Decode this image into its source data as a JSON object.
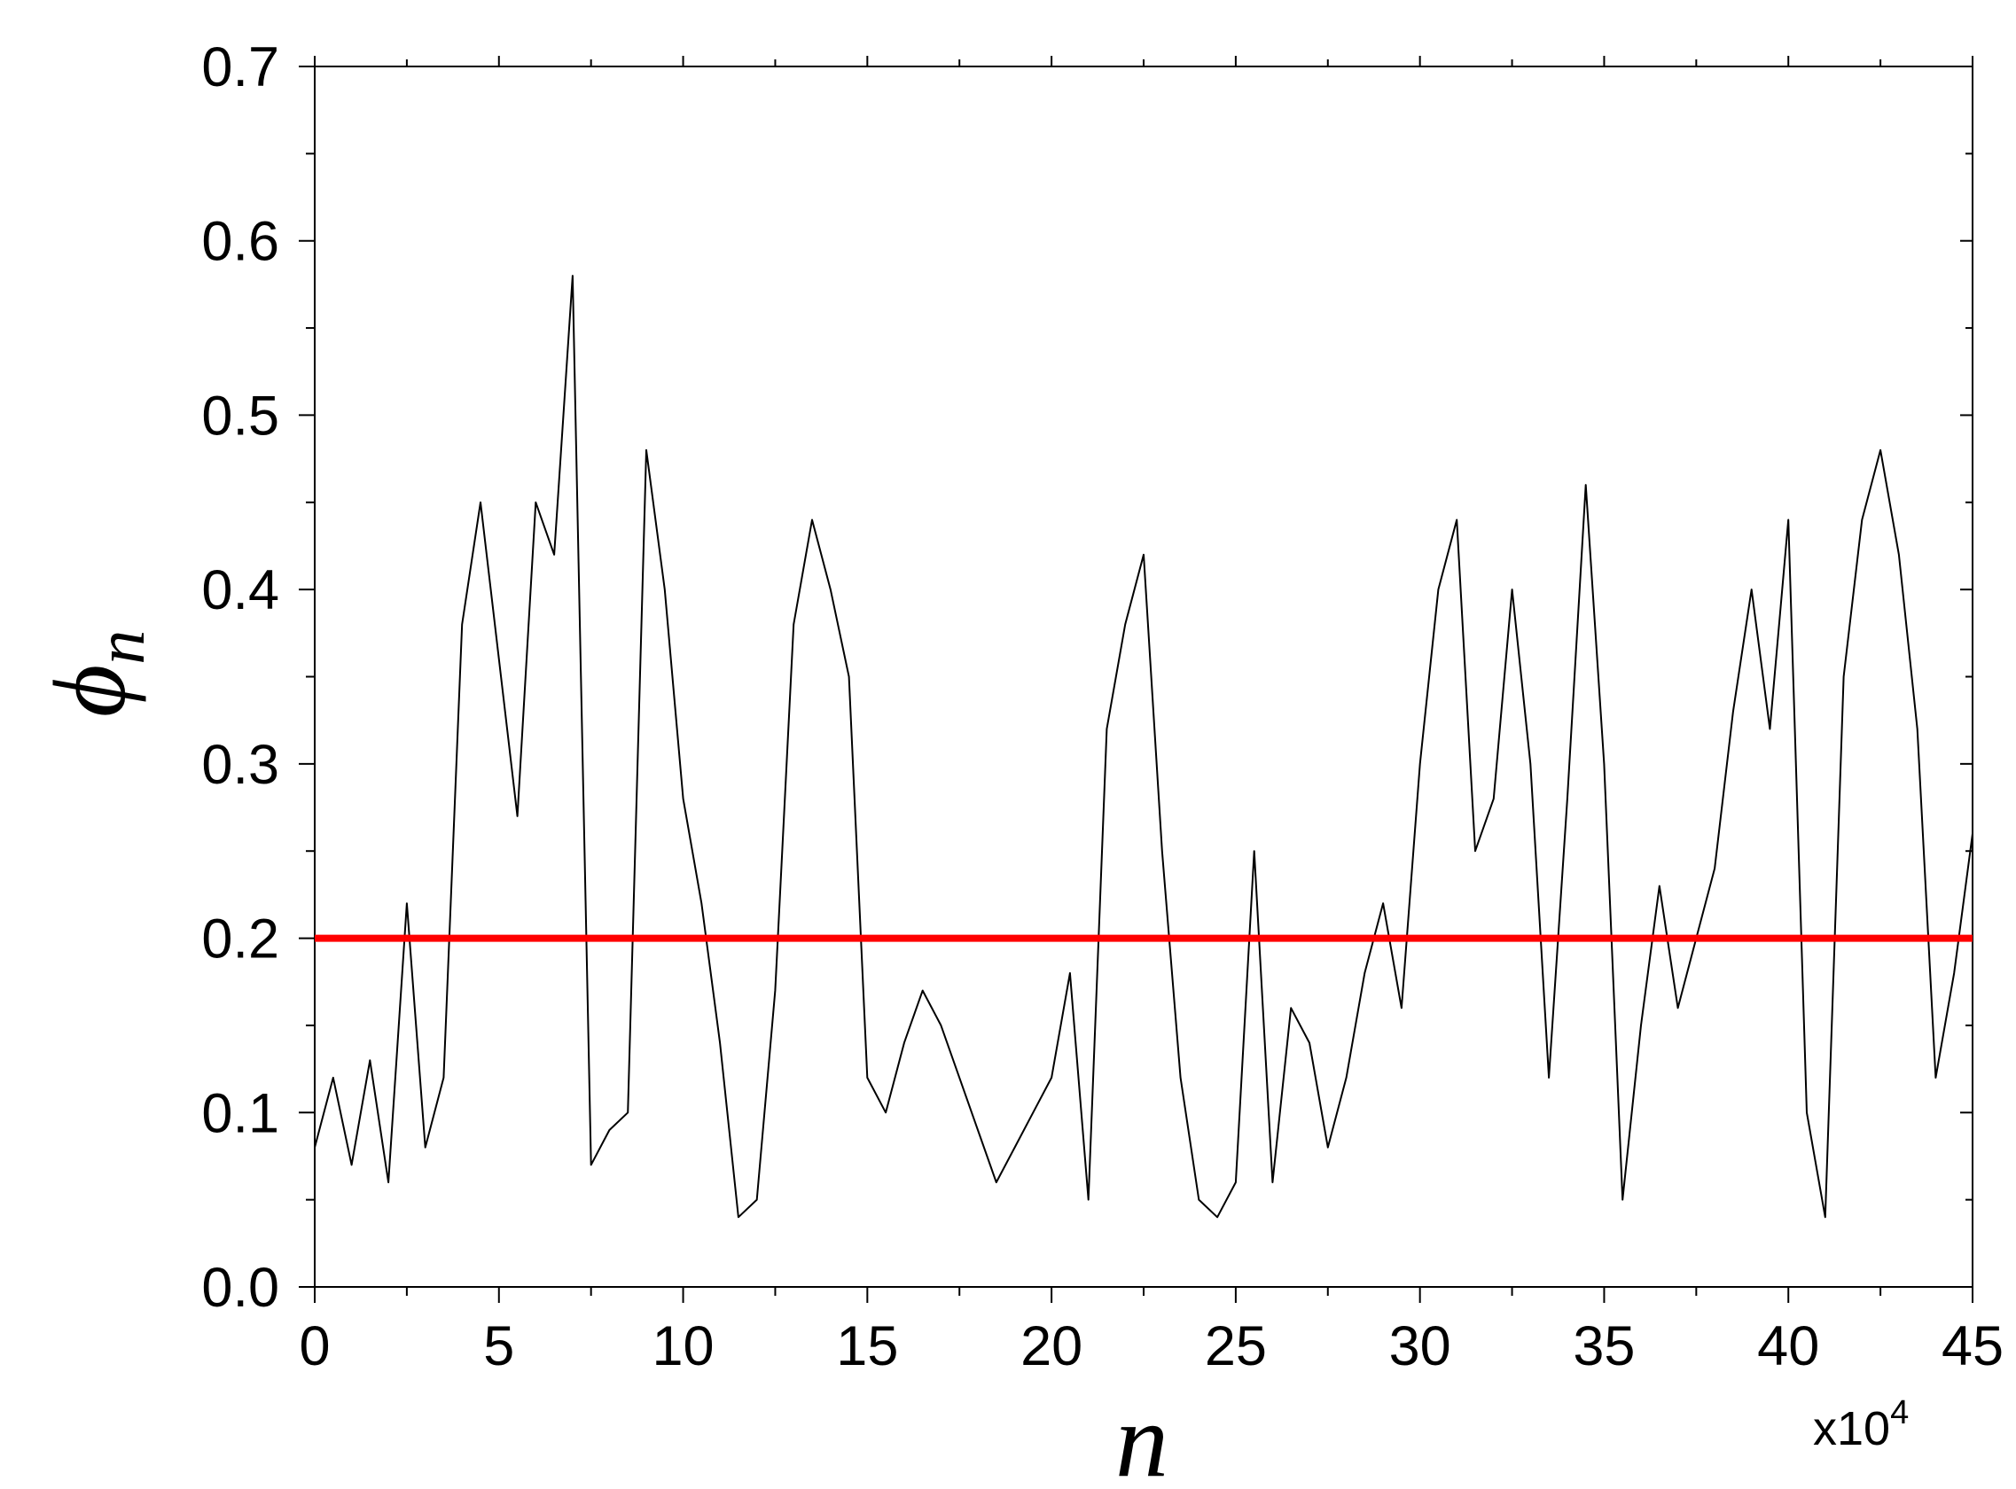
{
  "chart_data": {
    "type": "line",
    "title": "",
    "xlabel": "n",
    "ylabel": "ϕ",
    "ylabel_subscript": "n",
    "x_multiplier": {
      "base": "x10",
      "exponent": "4"
    },
    "xlim": [
      0,
      45
    ],
    "ylim": [
      0,
      0.7
    ],
    "xticks": [
      0,
      5,
      10,
      15,
      20,
      25,
      30,
      35,
      40,
      45
    ],
    "xtick_labels": [
      "0",
      "5",
      "10",
      "15",
      "20",
      "25",
      "30",
      "35",
      "40",
      "45"
    ],
    "yticks": [
      0.0,
      0.1,
      0.2,
      0.3,
      0.4,
      0.5,
      0.6,
      0.7
    ],
    "ytick_labels": [
      "0.0",
      "0.1",
      "0.2",
      "0.3",
      "0.4",
      "0.5",
      "0.6",
      "0.7"
    ],
    "grid": false,
    "legend": "none",
    "series": [
      {
        "color": "#000000",
        "x": [
          0,
          0.5,
          1,
          1.5,
          2,
          2.5,
          3,
          3.5,
          4,
          4.5,
          5,
          5.5,
          6,
          6.5,
          7,
          7.5,
          8,
          8.5,
          9,
          9.5,
          10,
          10.5,
          11,
          11.5,
          12,
          12.5,
          13,
          13.5,
          14,
          14.5,
          15,
          15.5,
          16,
          16.5,
          17,
          17.5,
          18,
          18.5,
          19,
          19.5,
          20,
          20.5,
          21,
          21.5,
          22,
          22.5,
          23,
          23.5,
          24,
          24.5,
          25,
          25.5,
          26,
          26.5,
          27,
          27.5,
          28,
          28.5,
          29,
          29.5,
          30,
          30.5,
          31,
          31.5,
          32,
          32.5,
          33,
          33.5,
          34,
          34.5,
          35,
          35.5,
          36,
          36.5,
          37,
          37.5,
          38,
          38.5,
          39,
          39.5,
          40,
          40.5,
          41,
          41.5,
          42,
          42.5,
          43,
          43.5,
          44,
          44.5,
          45
        ],
        "y": [
          0.08,
          0.12,
          0.07,
          0.13,
          0.06,
          0.22,
          0.08,
          0.12,
          0.38,
          0.45,
          0.36,
          0.27,
          0.45,
          0.42,
          0.58,
          0.07,
          0.09,
          0.1,
          0.48,
          0.4,
          0.28,
          0.22,
          0.14,
          0.04,
          0.05,
          0.17,
          0.38,
          0.44,
          0.4,
          0.35,
          0.12,
          0.1,
          0.14,
          0.17,
          0.15,
          0.12,
          0.09,
          0.06,
          0.08,
          0.1,
          0.12,
          0.18,
          0.05,
          0.32,
          0.38,
          0.42,
          0.25,
          0.12,
          0.05,
          0.04,
          0.06,
          0.25,
          0.06,
          0.16,
          0.14,
          0.08,
          0.12,
          0.18,
          0.22,
          0.16,
          0.3,
          0.4,
          0.44,
          0.25,
          0.28,
          0.4,
          0.3,
          0.12,
          0.28,
          0.46,
          0.3,
          0.05,
          0.15,
          0.23,
          0.16,
          0.2,
          0.24,
          0.33,
          0.4,
          0.32,
          0.44,
          0.1,
          0.04,
          0.35,
          0.44,
          0.48,
          0.42,
          0.32,
          0.12,
          0.18,
          0.26
        ]
      },
      {
        "color": "#ff0000",
        "x": [
          0,
          45
        ],
        "y": [
          0.2,
          0.2
        ]
      }
    ]
  }
}
